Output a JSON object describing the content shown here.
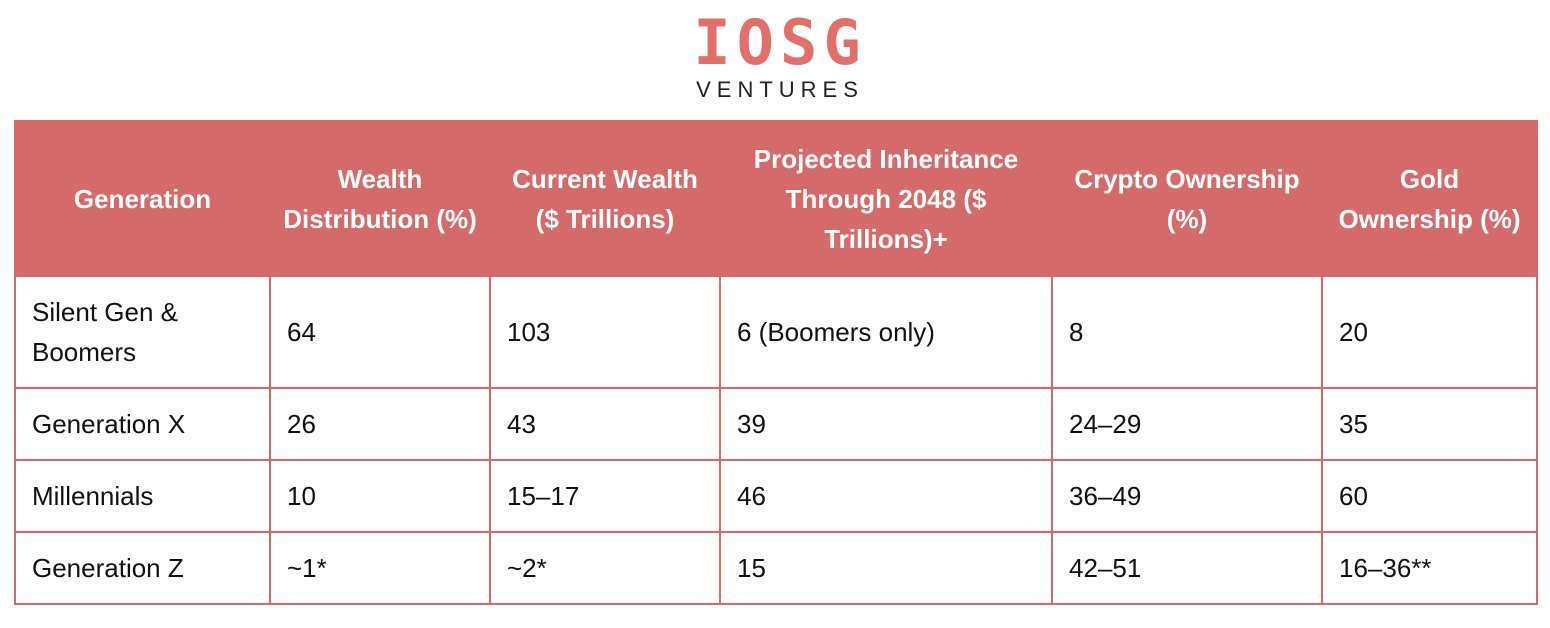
{
  "logo": {
    "name": "IOSG",
    "subtitle": "VENTURES"
  },
  "table": {
    "header": [
      "Generation",
      "Wealth Distribution (%)",
      "Current Wealth ($ Trillions)",
      "Projected Inheritance Through 2048 ($ Trillions)+",
      "Crypto Ownership (%)",
      "Gold Ownership (%)"
    ],
    "rows": [
      [
        "Silent Gen & Boomers",
        "64",
        "103",
        "6 (Boomers only)",
        "8",
        "20"
      ],
      [
        "Generation X",
        "26",
        "43",
        "39",
        "24–29",
        "35"
      ],
      [
        "Millennials",
        "10",
        "15–17",
        "46",
        "36–49",
        "60"
      ],
      [
        "Generation Z",
        "~1*",
        "~2*",
        "15",
        "42–51",
        "16–36**"
      ]
    ]
  }
}
